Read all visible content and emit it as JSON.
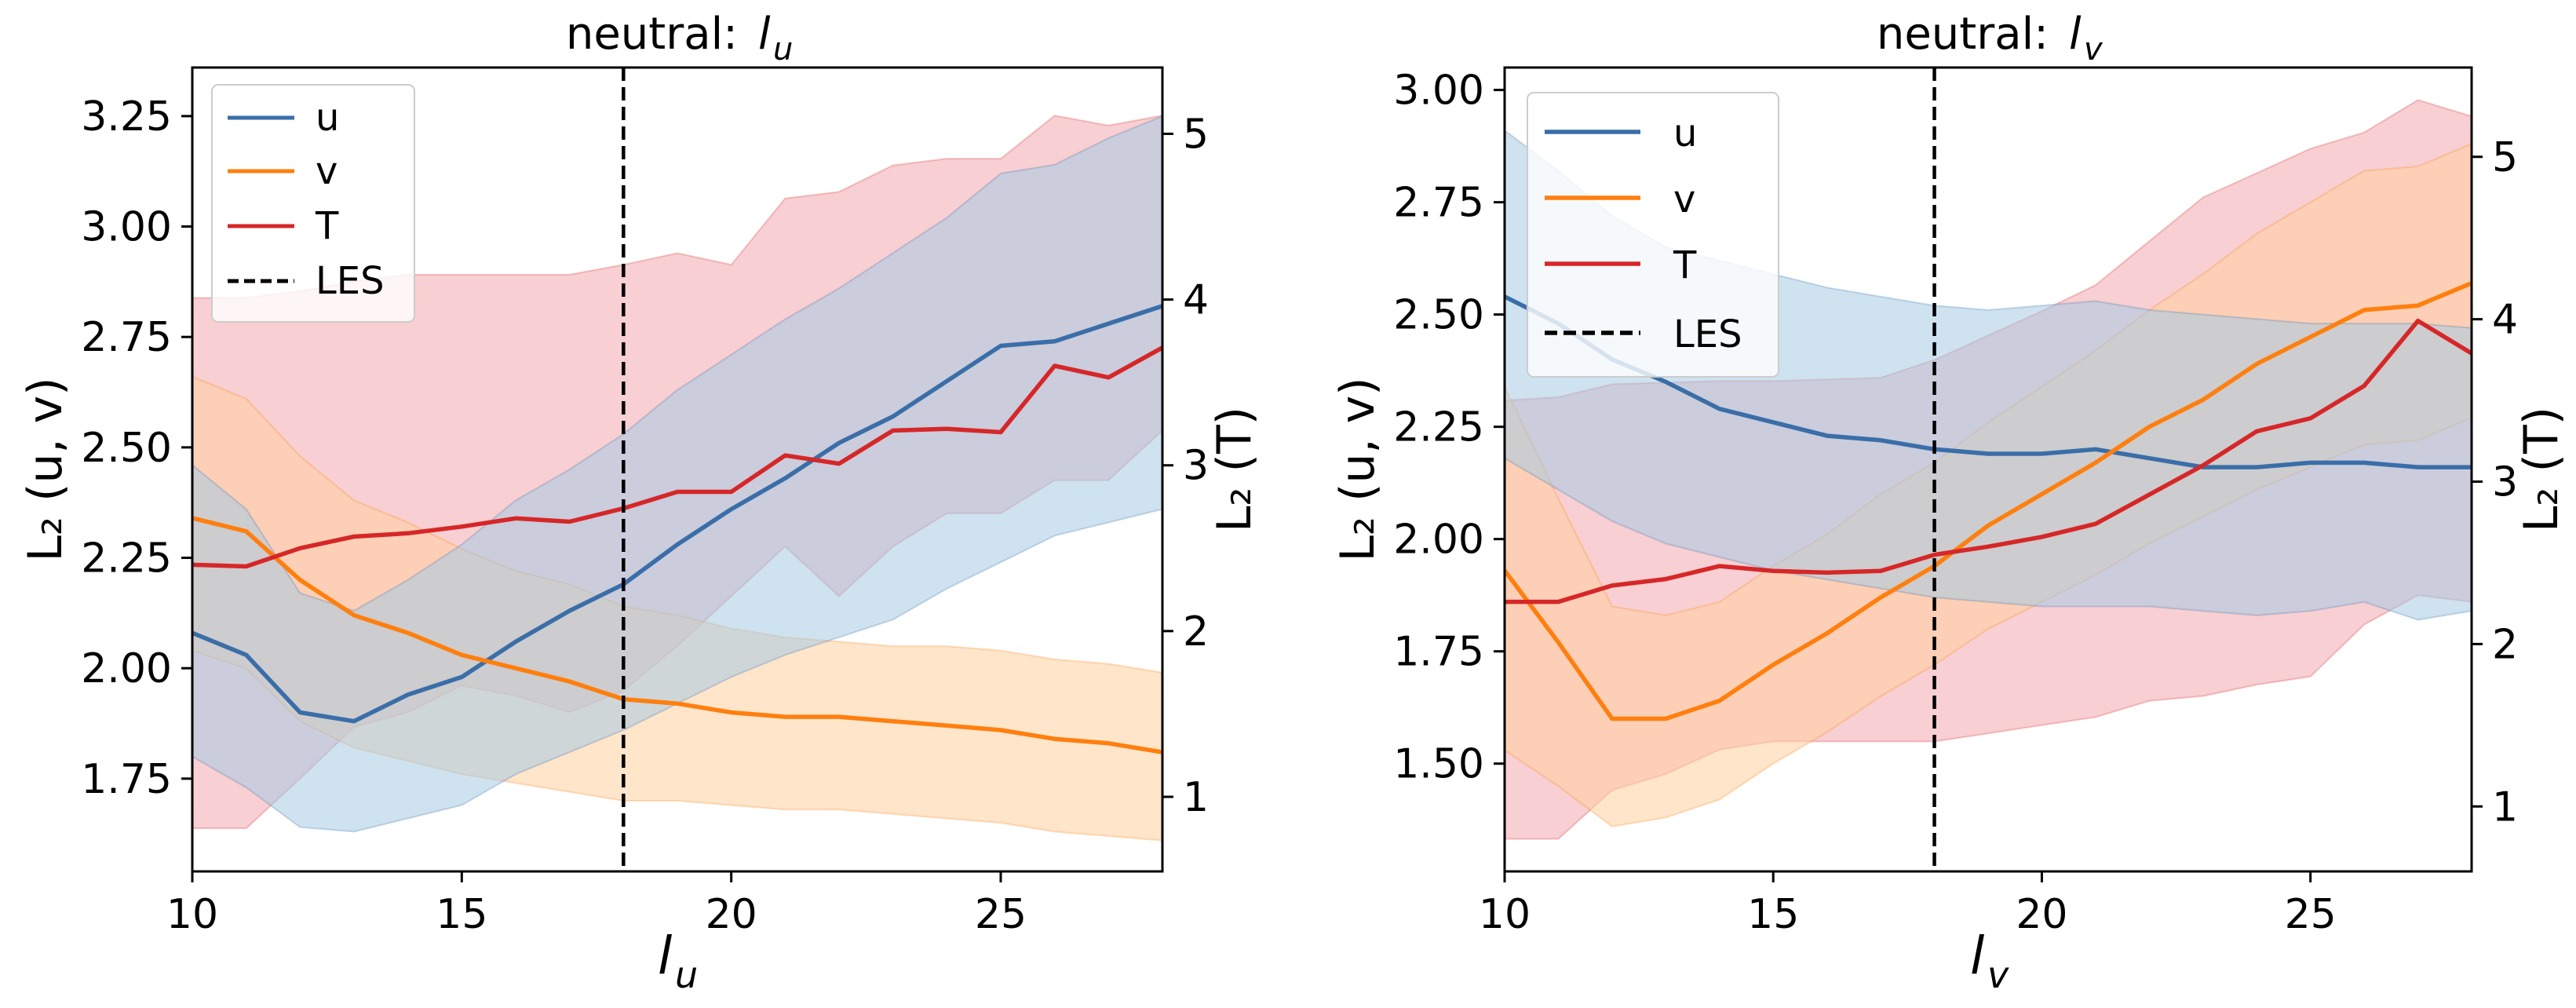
{
  "figure": {
    "panels": [
      {
        "title": "neutral: ",
        "title_var": "l",
        "title_sub": "u",
        "xlabel_var": "l",
        "xlabel_sub": "u",
        "ylabel_left": "L₂ (u, v)",
        "ylabel_right": "L₂ (T)",
        "x_ticks": [
          "10",
          "15",
          "20",
          "25"
        ],
        "y_left_ticks": [
          "1.75",
          "2.00",
          "2.25",
          "2.50",
          "2.75",
          "3.00",
          "3.25"
        ],
        "y_right_ticks": [
          "1",
          "2",
          "3",
          "4",
          "5"
        ],
        "legend": [
          "u",
          "v",
          "T",
          "LES"
        ]
      },
      {
        "title": "neutral: ",
        "title_var": "l",
        "title_sub": "v",
        "xlabel_var": "l",
        "xlabel_sub": "v",
        "ylabel_left": "L₂ (u, v)",
        "ylabel_right": "L₂ (T)",
        "x_ticks": [
          "10",
          "15",
          "20",
          "25"
        ],
        "y_left_ticks": [
          "1.50",
          "1.75",
          "2.00",
          "2.25",
          "2.50",
          "2.75",
          "3.00"
        ],
        "y_right_ticks": [
          "1",
          "2",
          "3",
          "4",
          "5"
        ],
        "legend": [
          "u",
          "v",
          "T",
          "LES"
        ]
      }
    ]
  },
  "colors": {
    "u": "#3a6ea8",
    "v": "#ff7f0e",
    "T": "#d62728",
    "u_band": "#a6cbe3",
    "v_band": "#ffcf9e",
    "T_band": "#f2a8ad",
    "LES": "#000000"
  },
  "chart_data": [
    {
      "type": "line",
      "title": "neutral: l_u",
      "xlabel": "l_u",
      "ylabel": "L2 (u, v)",
      "ylabel_right": "L2 (T)",
      "xlim": [
        10,
        28
      ],
      "ylim": [
        1.54,
        3.36
      ],
      "ylim_right": [
        0.55,
        5.4
      ],
      "legend_position": "upper-left",
      "vline": {
        "x": 18,
        "label": "LES",
        "style": "dashed"
      },
      "x": [
        10,
        11,
        12,
        13,
        14,
        15,
        16,
        17,
        18,
        19,
        20,
        21,
        22,
        23,
        24,
        25,
        26,
        27,
        28
      ],
      "series": [
        {
          "name": "u",
          "axis": "left",
          "values": [
            2.08,
            2.03,
            1.9,
            1.88,
            1.94,
            1.98,
            2.06,
            2.13,
            2.19,
            2.28,
            2.36,
            2.43,
            2.51,
            2.57,
            2.65,
            2.73,
            2.74,
            2.78,
            2.82
          ],
          "lower": [
            1.8,
            1.73,
            1.64,
            1.63,
            1.66,
            1.69,
            1.76,
            1.81,
            1.86,
            1.92,
            1.98,
            2.03,
            2.07,
            2.11,
            2.18,
            2.24,
            2.3,
            2.33,
            2.36
          ],
          "upper": [
            2.46,
            2.36,
            2.17,
            2.13,
            2.2,
            2.28,
            2.38,
            2.45,
            2.53,
            2.63,
            2.71,
            2.79,
            2.86,
            2.94,
            3.02,
            3.12,
            3.14,
            3.2,
            3.25
          ]
        },
        {
          "name": "v",
          "axis": "left",
          "values": [
            2.34,
            2.31,
            2.2,
            2.12,
            2.08,
            2.03,
            2.0,
            1.97,
            1.93,
            1.92,
            1.9,
            1.89,
            1.89,
            1.88,
            1.87,
            1.86,
            1.84,
            1.83,
            1.81
          ],
          "lower": [
            2.04,
            2.0,
            1.88,
            1.82,
            1.79,
            1.76,
            1.74,
            1.72,
            1.7,
            1.7,
            1.69,
            1.68,
            1.68,
            1.67,
            1.66,
            1.65,
            1.63,
            1.62,
            1.61
          ],
          "upper": [
            2.66,
            2.61,
            2.48,
            2.38,
            2.33,
            2.27,
            2.22,
            2.19,
            2.14,
            2.12,
            2.09,
            2.07,
            2.06,
            2.05,
            2.05,
            2.04,
            2.02,
            2.01,
            1.99
          ]
        },
        {
          "name": "T",
          "axis": "right",
          "values": [
            2.4,
            2.39,
            2.5,
            2.57,
            2.59,
            2.63,
            2.68,
            2.66,
            2.74,
            2.84,
            2.84,
            3.06,
            3.01,
            3.21,
            3.22,
            3.2,
            3.6,
            3.53,
            3.71
          ],
          "lower": [
            0.81,
            0.81,
            1.11,
            1.42,
            1.51,
            1.67,
            1.61,
            1.51,
            1.64,
            1.91,
            2.21,
            2.51,
            2.21,
            2.51,
            2.71,
            2.71,
            2.91,
            2.91,
            3.21
          ],
          "upper": [
            4.01,
            4.01,
            4.05,
            4.11,
            4.15,
            4.15,
            4.15,
            4.15,
            4.21,
            4.28,
            4.21,
            4.61,
            4.65,
            4.81,
            4.85,
            4.85,
            5.11,
            5.05,
            5.11
          ]
        }
      ]
    },
    {
      "type": "line",
      "title": "neutral: l_v",
      "xlabel": "l_v",
      "ylabel": "L2 (u, v)",
      "ylabel_right": "L2 (T)",
      "xlim": [
        10,
        28
      ],
      "ylim": [
        1.26,
        3.05
      ],
      "ylim_right": [
        0.6,
        5.55
      ],
      "legend_position": "upper-left",
      "vline": {
        "x": 18,
        "label": "LES",
        "style": "dashed"
      },
      "x": [
        10,
        11,
        12,
        13,
        14,
        15,
        16,
        17,
        18,
        19,
        20,
        21,
        22,
        23,
        24,
        25,
        26,
        27,
        28
      ],
      "series": [
        {
          "name": "u",
          "axis": "left",
          "values": [
            2.54,
            2.48,
            2.4,
            2.35,
            2.29,
            2.26,
            2.23,
            2.22,
            2.2,
            2.19,
            2.19,
            2.2,
            2.18,
            2.16,
            2.16,
            2.17,
            2.17,
            2.16,
            2.16
          ],
          "lower": [
            2.18,
            2.11,
            2.04,
            1.99,
            1.96,
            1.93,
            1.91,
            1.89,
            1.87,
            1.86,
            1.85,
            1.85,
            1.85,
            1.84,
            1.83,
            1.84,
            1.86,
            1.82,
            1.84
          ],
          "upper": [
            2.91,
            2.82,
            2.72,
            2.65,
            2.62,
            2.59,
            2.56,
            2.54,
            2.52,
            2.51,
            2.52,
            2.53,
            2.51,
            2.5,
            2.49,
            2.48,
            2.48,
            2.48,
            2.47
          ]
        },
        {
          "name": "v",
          "axis": "left",
          "values": [
            1.93,
            1.77,
            1.6,
            1.6,
            1.64,
            1.72,
            1.79,
            1.87,
            1.94,
            2.03,
            2.1,
            2.17,
            2.25,
            2.31,
            2.39,
            2.45,
            2.51,
            2.52,
            2.57
          ],
          "lower": [
            1.53,
            1.45,
            1.36,
            1.38,
            1.42,
            1.5,
            1.57,
            1.65,
            1.72,
            1.8,
            1.86,
            1.92,
            1.99,
            2.05,
            2.11,
            2.16,
            2.21,
            2.22,
            2.27
          ],
          "upper": [
            2.34,
            2.09,
            1.85,
            1.83,
            1.86,
            1.94,
            2.01,
            2.1,
            2.17,
            2.26,
            2.34,
            2.42,
            2.51,
            2.59,
            2.68,
            2.75,
            2.82,
            2.83,
            2.88
          ]
        },
        {
          "name": "T",
          "axis": "right",
          "values": [
            2.26,
            2.26,
            2.36,
            2.4,
            2.48,
            2.45,
            2.44,
            2.45,
            2.55,
            2.6,
            2.66,
            2.74,
            2.92,
            3.1,
            3.31,
            3.39,
            3.59,
            3.99,
            3.79
          ],
          "lower": [
            0.8,
            0.8,
            1.1,
            1.2,
            1.35,
            1.4,
            1.4,
            1.4,
            1.4,
            1.45,
            1.5,
            1.55,
            1.65,
            1.68,
            1.75,
            1.8,
            2.12,
            2.3,
            2.26
          ],
          "upper": [
            3.5,
            3.52,
            3.6,
            3.61,
            3.62,
            3.62,
            3.63,
            3.64,
            3.75,
            3.9,
            4.05,
            4.21,
            4.48,
            4.75,
            4.9,
            5.05,
            5.15,
            5.35,
            5.25
          ]
        }
      ]
    }
  ]
}
